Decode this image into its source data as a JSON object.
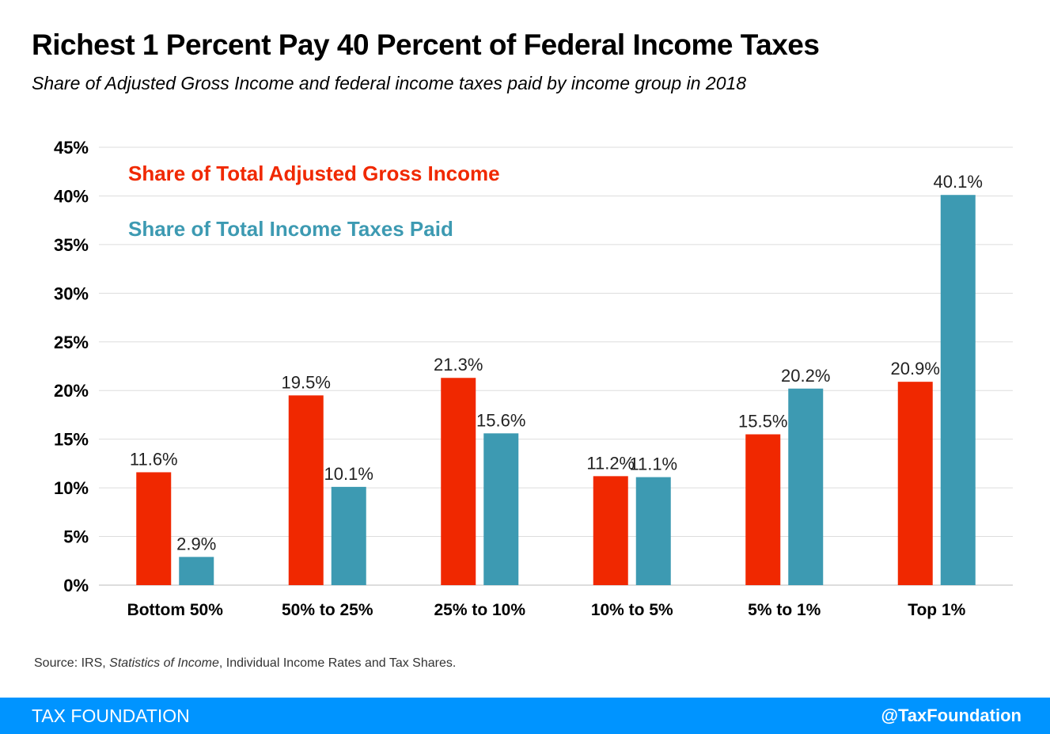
{
  "title": "Richest 1 Percent Pay 40 Percent of Federal Income Taxes",
  "subtitle": "Share of Adjusted Gross Income and federal income taxes paid by income group in 2018",
  "source": {
    "prefix": "Source: IRS, ",
    "italic": "Statistics of Income",
    "suffix": ", Individual Income Rates and Tax Shares."
  },
  "footer": {
    "brand": "TAX FOUNDATION",
    "handle": "@TaxFoundation"
  },
  "colors": {
    "agi": "#f02800",
    "taxes": "#3d9ab2",
    "footer": "#0094ff",
    "grid": "#dddddd"
  },
  "chart_data": {
    "type": "bar",
    "categories": [
      "Bottom 50%",
      "50% to 25%",
      "25% to 10%",
      "10% to 5%",
      "5% to 1%",
      "Top 1%"
    ],
    "series": [
      {
        "name": "Share of Total Adjusted Gross Income",
        "values": [
          11.6,
          19.5,
          21.3,
          11.2,
          15.5,
          20.9
        ],
        "labels": [
          "11.6%",
          "19.5%",
          "21.3%",
          "11.2%",
          "15.5%",
          "20.9%"
        ],
        "color": "#f02800"
      },
      {
        "name": "Share of Total Income Taxes Paid",
        "values": [
          2.9,
          10.1,
          15.6,
          11.1,
          20.2,
          40.1
        ],
        "labels": [
          "2.9%",
          "10.1%",
          "15.6%",
          "11.1%",
          "20.2%",
          "40.1%"
        ],
        "color": "#3d9ab2"
      }
    ],
    "ylim": [
      0,
      45
    ],
    "yticks": [
      0,
      5,
      10,
      15,
      20,
      25,
      30,
      35,
      40,
      45
    ],
    "ytick_labels": [
      "0%",
      "5%",
      "10%",
      "15%",
      "20%",
      "25%",
      "30%",
      "35%",
      "40%",
      "45%"
    ],
    "grid": true,
    "legend_position": "top-left"
  }
}
